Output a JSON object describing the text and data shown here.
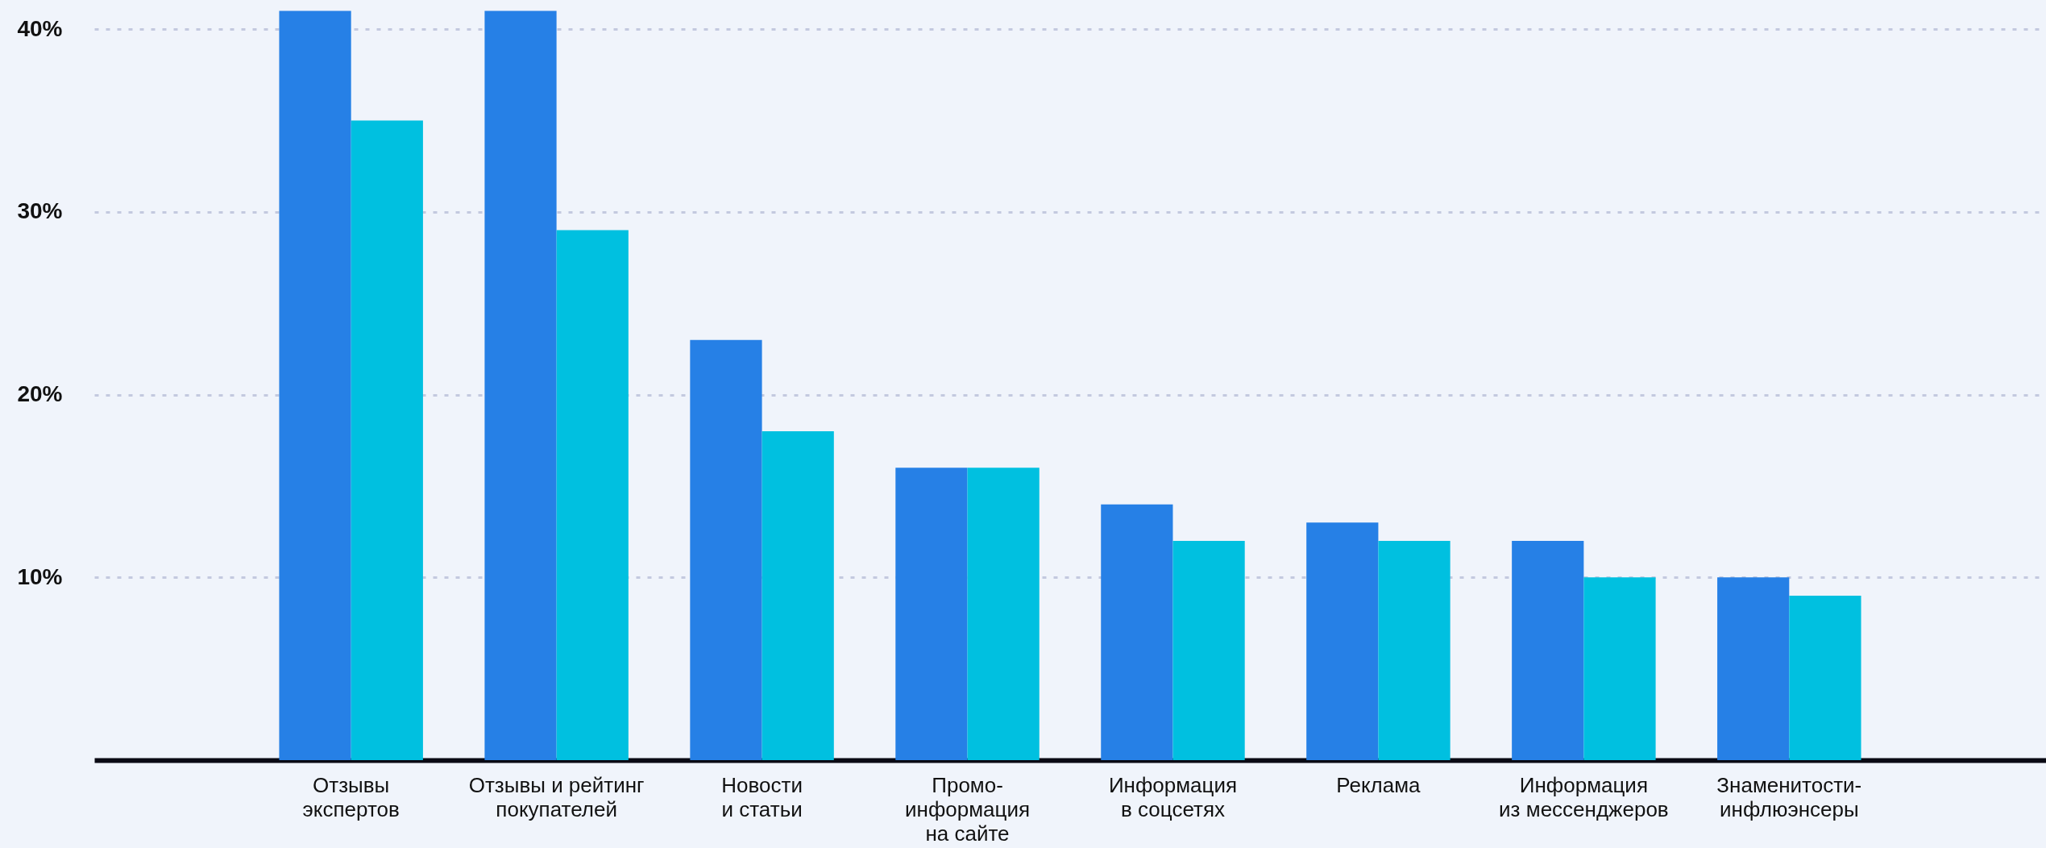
{
  "chart_data": {
    "type": "bar",
    "categories": [
      "Отзывы\nэкспертов",
      "Отзывы и рейтинг\nпокупателей",
      "Новости\nи статьи",
      "Промо-\nинформация\nна сайте",
      "Информация\nв соцсетях",
      "Реклама",
      "Информация\nиз мессенджеров",
      "Знаменитости-\nинфлюэнсеры"
    ],
    "series": [
      {
        "color": "#2680e6",
        "values": [
          41,
          41,
          23,
          16,
          14,
          13,
          12,
          10
        ]
      },
      {
        "color": "#00c0e0",
        "values": [
          35,
          29,
          18,
          16,
          12,
          12,
          10,
          9
        ]
      }
    ],
    "ylim": [
      0,
      41.6
    ],
    "yticks": [
      {
        "value": 10,
        "label": "10%"
      },
      {
        "value": 20,
        "label": "20%"
      },
      {
        "value": 30,
        "label": "30%"
      },
      {
        "value": 40,
        "label": "40%"
      }
    ],
    "grid": "y"
  }
}
